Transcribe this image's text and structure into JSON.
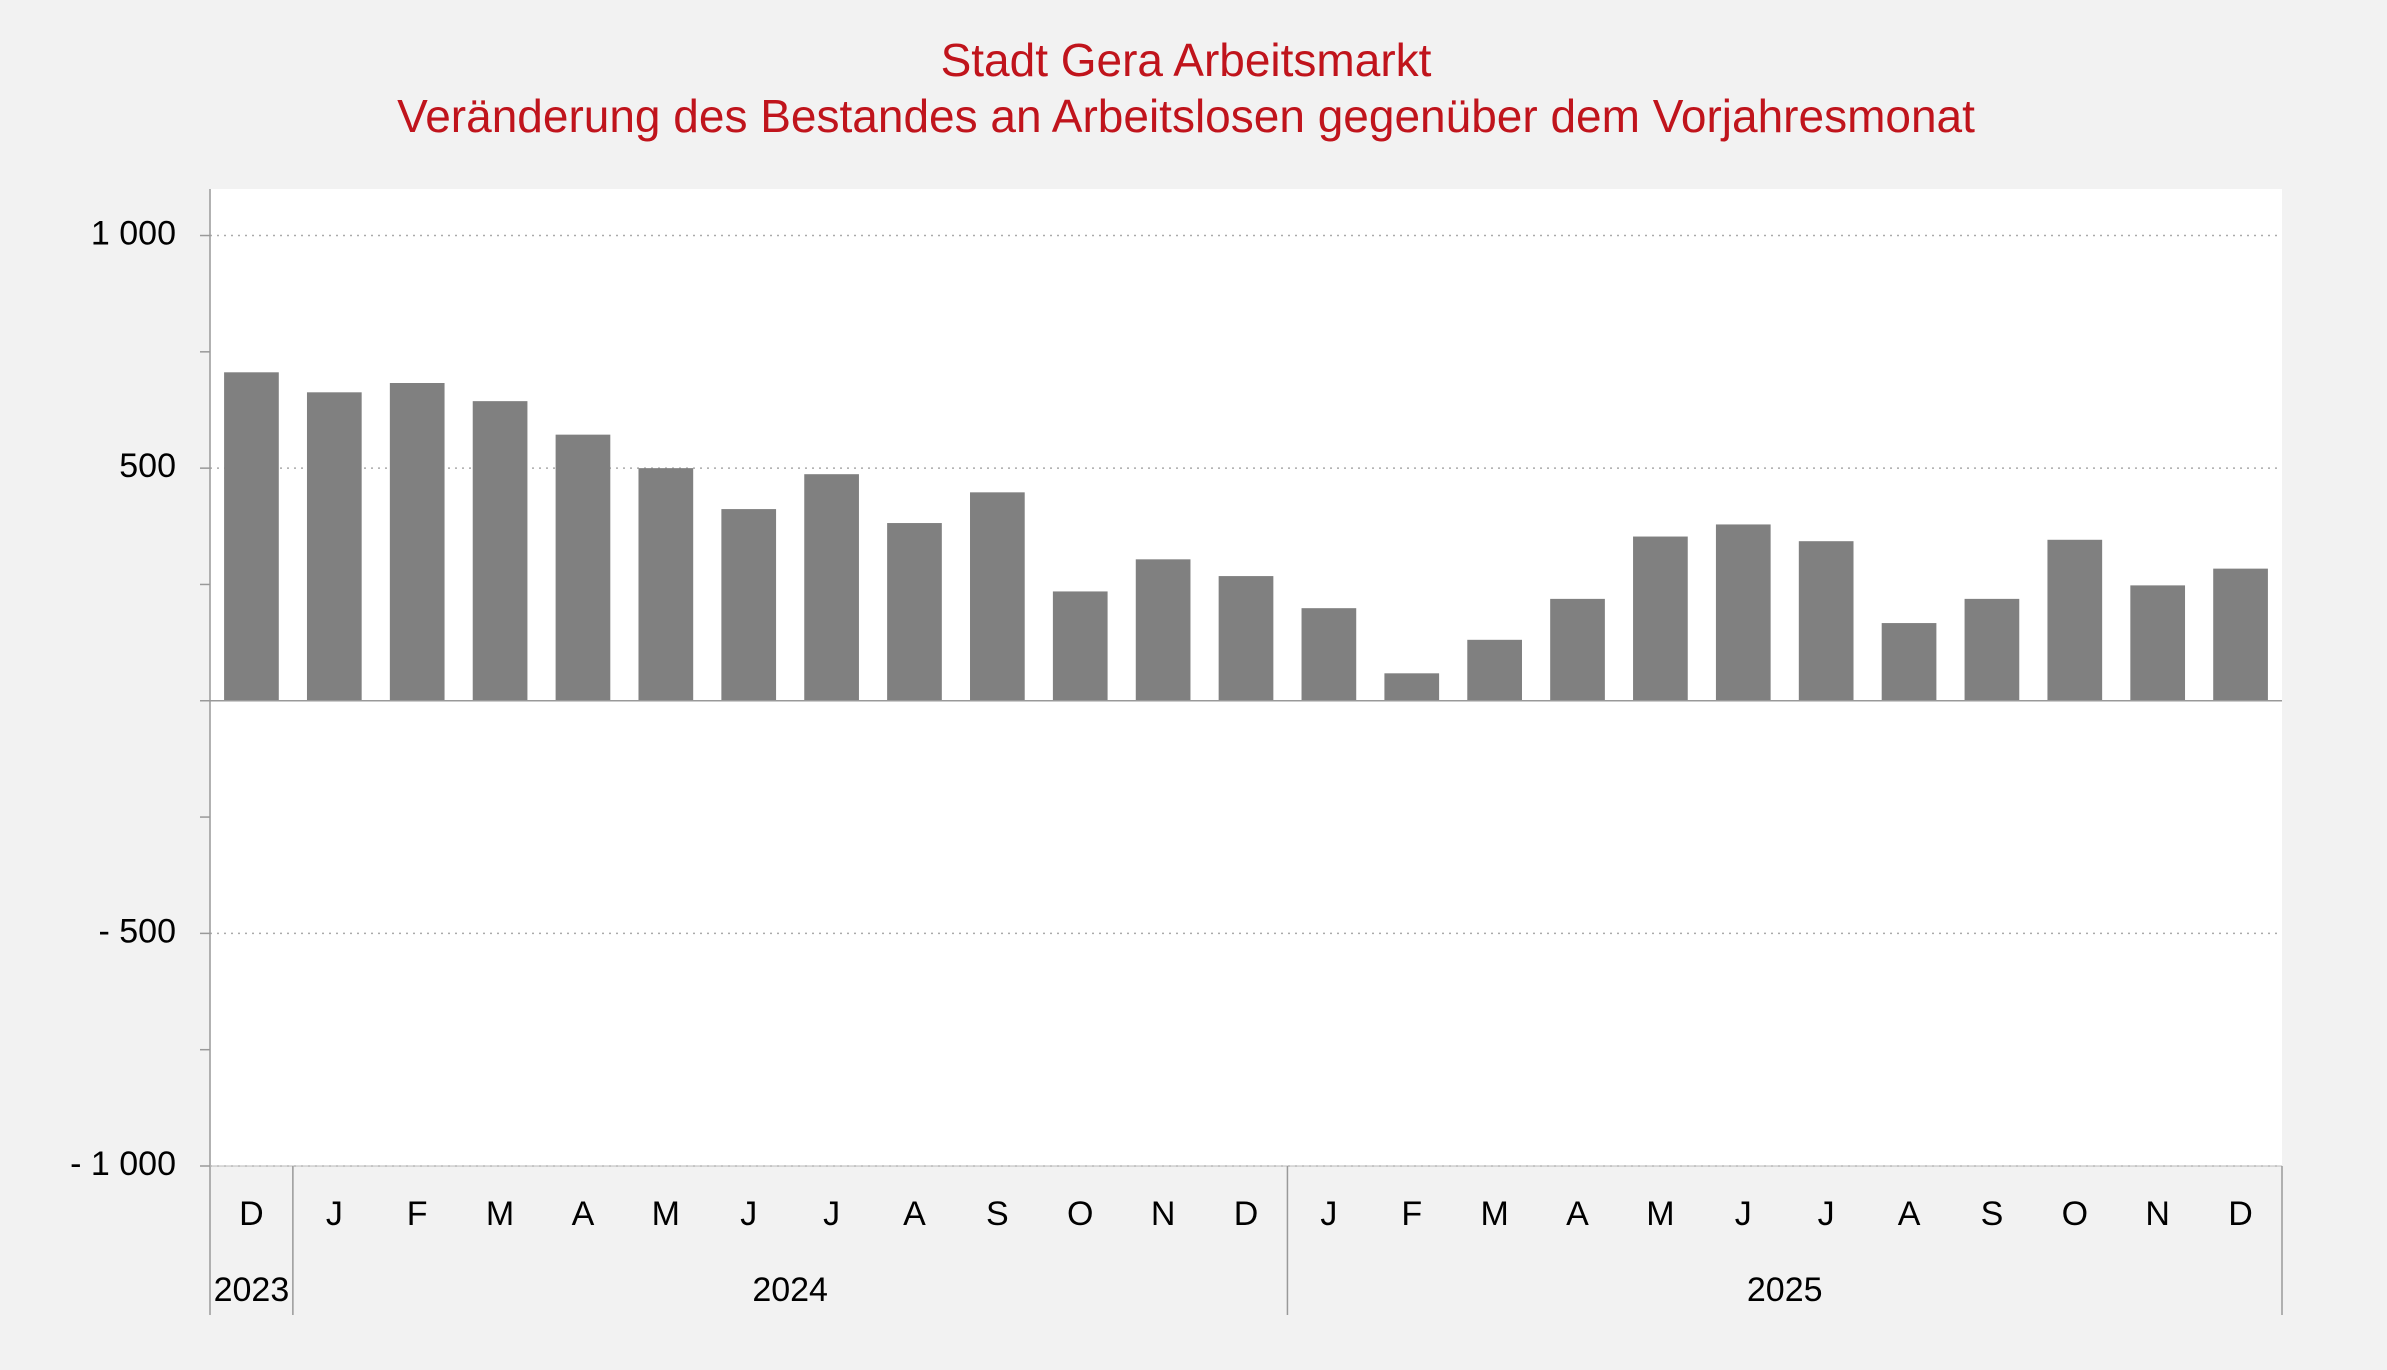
{
  "chart_data": {
    "type": "bar",
    "title": "Stadt Gera Arbeitsmarkt",
    "subtitle": "Veränderung des Bestandes an Arbeitslosen gegenüber dem Vorjahresmonat",
    "categories": [
      "D",
      "J",
      "F",
      "M",
      "A",
      "M",
      "J",
      "J",
      "A",
      "S",
      "O",
      "N",
      "D",
      "J",
      "F",
      "M",
      "A",
      "M",
      "J",
      "J",
      "A",
      "S",
      "O",
      "N",
      "D"
    ],
    "category_groups": [
      {
        "label": "2023",
        "size": 1
      },
      {
        "label": "2024",
        "size": 12
      },
      {
        "label": "2025",
        "size": 12
      }
    ],
    "values": [
      706,
      663,
      683,
      644,
      572,
      500,
      412,
      487,
      382,
      448,
      235,
      304,
      268,
      199,
      59,
      131,
      219,
      353,
      379,
      343,
      167,
      219,
      346,
      248,
      284
    ],
    "color": "#808080",
    "ylim": [
      -1000,
      1100
    ],
    "yticks": [
      {
        "value": -1000,
        "label": "- 1 000"
      },
      {
        "value": -500,
        "label": "-  500"
      },
      500,
      {
        "value": 1000,
        "label": "1 000"
      }
    ],
    "yminorticks": [
      -750,
      -250,
      0,
      250,
      750
    ],
    "grid": true
  }
}
